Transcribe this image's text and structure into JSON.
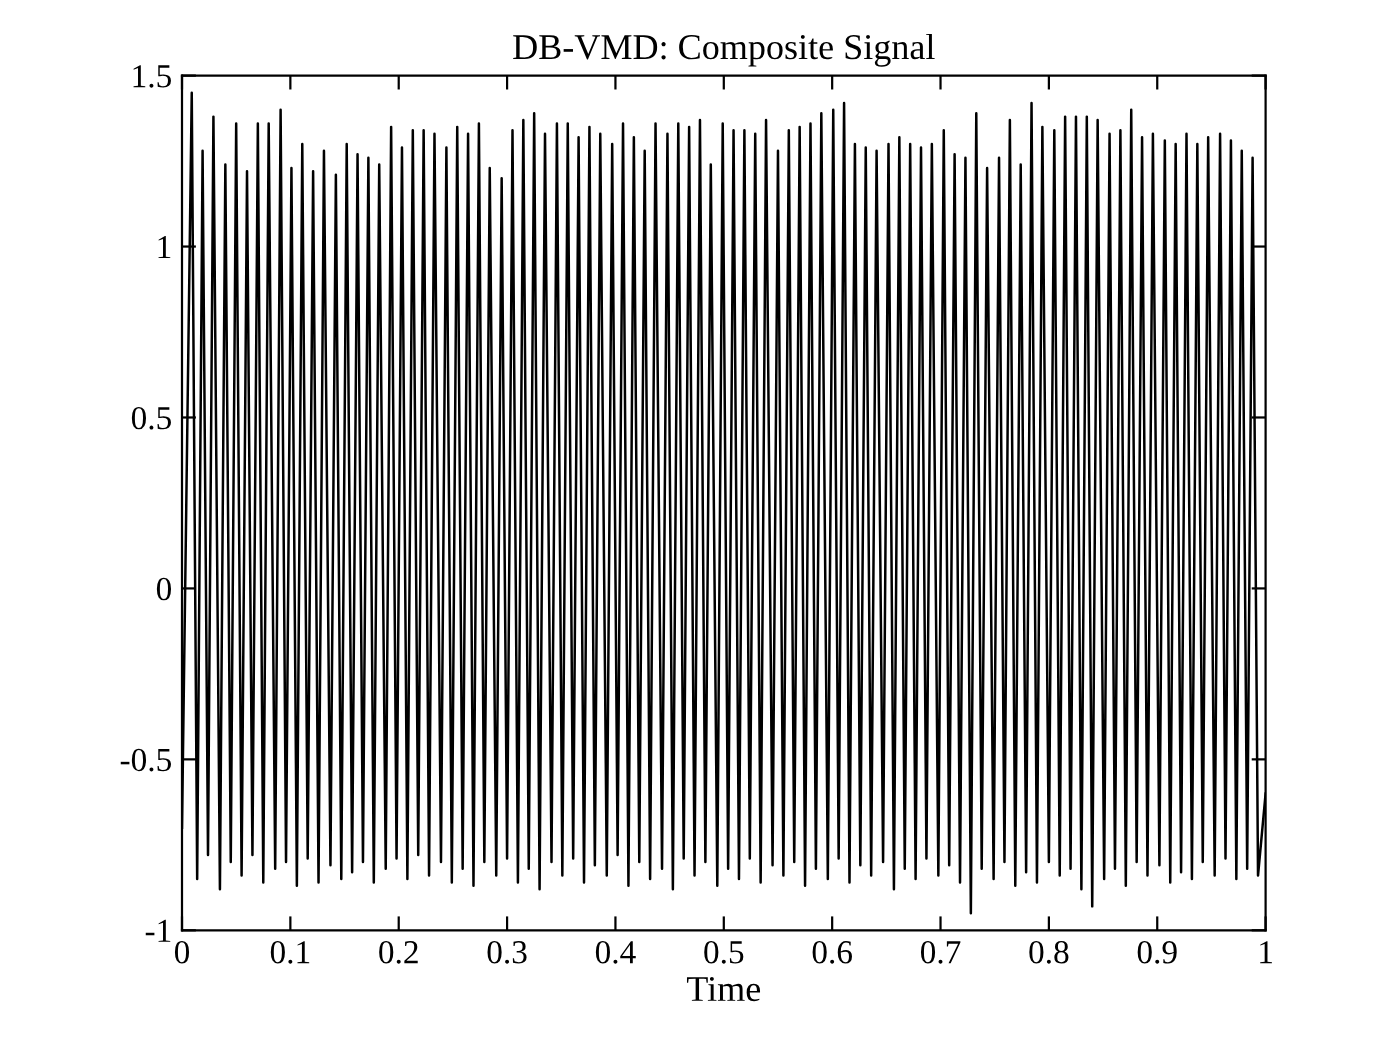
{
  "chart_data": {
    "type": "line",
    "title": "DB-VMD: Composite Signal",
    "xlabel": "Time",
    "xlim": [
      0,
      1
    ],
    "xticks": [
      0,
      0.1,
      0.2,
      0.3,
      0.4,
      0.5,
      0.6,
      0.7,
      0.8,
      0.9,
      1
    ],
    "ylim": [
      -1,
      1.5
    ],
    "yticks": [
      -1,
      -0.5,
      0,
      0.5,
      1,
      1.5
    ],
    "grid": false,
    "marker": "none",
    "line_style": "solid",
    "series": [
      {
        "color": "#000000",
        "x": [
          0,
          0.009,
          0.014,
          0.019,
          0.024,
          0.029,
          0.035,
          0.04,
          0.045,
          0.05,
          0.055,
          0.06,
          0.065,
          0.07,
          0.075,
          0.08,
          0.086,
          0.091,
          0.096,
          0.101,
          0.106,
          0.111,
          0.116,
          0.121,
          0.126,
          0.131,
          0.137,
          0.142,
          0.147,
          0.152,
          0.157,
          0.162,
          0.167,
          0.172,
          0.177,
          0.182,
          0.188,
          0.193,
          0.198,
          0.203,
          0.208,
          0.213,
          0.218,
          0.223,
          0.228,
          0.233,
          0.239,
          0.244,
          0.249,
          0.254,
          0.259,
          0.264,
          0.269,
          0.274,
          0.279,
          0.284,
          0.29,
          0.295,
          0.3,
          0.305,
          0.31,
          0.315,
          0.32,
          0.325,
          0.33,
          0.335,
          0.341,
          0.346,
          0.351,
          0.356,
          0.361,
          0.366,
          0.371,
          0.376,
          0.381,
          0.386,
          0.392,
          0.397,
          0.402,
          0.407,
          0.412,
          0.417,
          0.422,
          0.427,
          0.432,
          0.437,
          0.443,
          0.448,
          0.453,
          0.458,
          0.463,
          0.468,
          0.473,
          0.478,
          0.483,
          0.488,
          0.494,
          0.499,
          0.504,
          0.509,
          0.514,
          0.519,
          0.524,
          0.529,
          0.534,
          0.539,
          0.545,
          0.55,
          0.555,
          0.56,
          0.565,
          0.57,
          0.575,
          0.58,
          0.585,
          0.59,
          0.596,
          0.601,
          0.606,
          0.611,
          0.616,
          0.621,
          0.626,
          0.631,
          0.636,
          0.641,
          0.647,
          0.652,
          0.657,
          0.662,
          0.667,
          0.672,
          0.677,
          0.682,
          0.687,
          0.692,
          0.698,
          0.703,
          0.708,
          0.713,
          0.718,
          0.723,
          0.728,
          0.733,
          0.738,
          0.743,
          0.749,
          0.754,
          0.759,
          0.764,
          0.769,
          0.774,
          0.779,
          0.784,
          0.789,
          0.794,
          0.8,
          0.805,
          0.81,
          0.815,
          0.82,
          0.825,
          0.83,
          0.835,
          0.84,
          0.845,
          0.851,
          0.856,
          0.861,
          0.866,
          0.871,
          0.876,
          0.881,
          0.886,
          0.891,
          0.896,
          0.902,
          0.907,
          0.912,
          0.917,
          0.922,
          0.927,
          0.932,
          0.937,
          0.942,
          0.947,
          0.953,
          0.958,
          0.963,
          0.968,
          0.973,
          0.978,
          0.983,
          0.988,
          0.993,
          1
        ],
        "values": [
          -0.7,
          1.45,
          -0.85,
          1.28,
          -0.78,
          1.38,
          -0.88,
          1.24,
          -0.8,
          1.36,
          -0.84,
          1.22,
          -0.78,
          1.36,
          -0.86,
          1.36,
          -0.82,
          1.4,
          -0.8,
          1.23,
          -0.87,
          1.3,
          -0.79,
          1.22,
          -0.86,
          1.28,
          -0.81,
          1.21,
          -0.85,
          1.3,
          -0.83,
          1.27,
          -0.8,
          1.26,
          -0.86,
          1.24,
          -0.82,
          1.35,
          -0.79,
          1.29,
          -0.85,
          1.34,
          -0.78,
          1.34,
          -0.84,
          1.33,
          -0.8,
          1.29,
          -0.86,
          1.35,
          -0.82,
          1.33,
          -0.87,
          1.36,
          -0.8,
          1.23,
          -0.84,
          1.2,
          -0.79,
          1.34,
          -0.86,
          1.37,
          -0.82,
          1.39,
          -0.88,
          1.33,
          -0.8,
          1.36,
          -0.84,
          1.36,
          -0.79,
          1.32,
          -0.86,
          1.35,
          -0.81,
          1.33,
          -0.84,
          1.3,
          -0.78,
          1.36,
          -0.87,
          1.32,
          -0.8,
          1.28,
          -0.85,
          1.36,
          -0.82,
          1.33,
          -0.88,
          1.36,
          -0.79,
          1.35,
          -0.84,
          1.37,
          -0.8,
          1.24,
          -0.87,
          1.36,
          -0.82,
          1.34,
          -0.85,
          1.34,
          -0.79,
          1.33,
          -0.86,
          1.37,
          -0.81,
          1.28,
          -0.84,
          1.34,
          -0.8,
          1.35,
          -0.87,
          1.36,
          -0.82,
          1.39,
          -0.85,
          1.4,
          -0.79,
          1.42,
          -0.86,
          1.3,
          -0.81,
          1.29,
          -0.84,
          1.28,
          -0.8,
          1.3,
          -0.88,
          1.32,
          -0.82,
          1.3,
          -0.85,
          1.29,
          -0.79,
          1.3,
          -0.84,
          1.34,
          -0.81,
          1.27,
          -0.86,
          1.26,
          -0.95,
          1.39,
          -0.82,
          1.23,
          -0.85,
          1.26,
          -0.8,
          1.37,
          -0.87,
          1.24,
          -0.83,
          1.42,
          -0.86,
          1.35,
          -0.8,
          1.34,
          -0.84,
          1.38,
          -0.82,
          1.38,
          -0.88,
          1.38,
          -0.93,
          1.37,
          -0.85,
          1.33,
          -0.82,
          1.34,
          -0.87,
          1.4,
          -0.8,
          1.32,
          -0.84,
          1.33,
          -0.81,
          1.31,
          -0.86,
          1.3,
          -0.83,
          1.33,
          -0.85,
          1.3,
          -0.8,
          1.32,
          -0.84,
          1.33,
          -0.79,
          1.31,
          -0.85,
          1.28,
          -0.82,
          1.26,
          -0.84,
          -0.6
        ]
      }
    ]
  }
}
